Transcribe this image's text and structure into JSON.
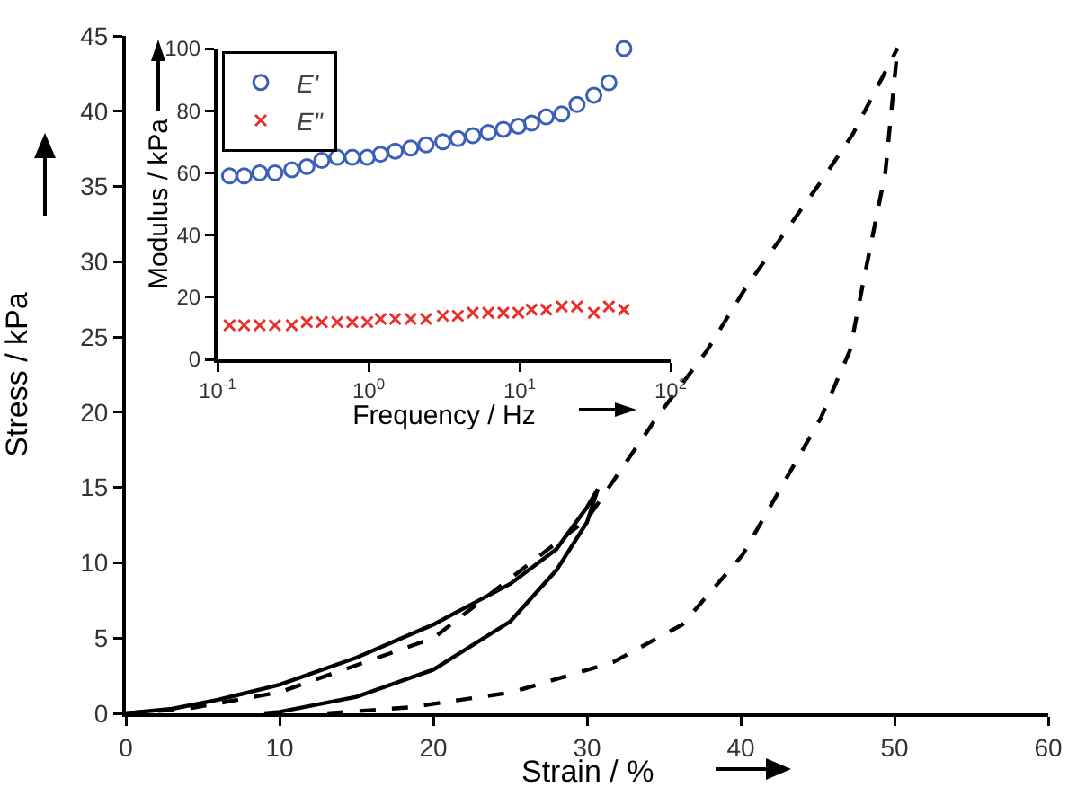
{
  "chart_data": [
    {
      "type": "line",
      "xlabel": "Strain / %",
      "ylabel": "Stress / kPa",
      "xlim": [
        0,
        60
      ],
      "xticks": [
        0,
        10,
        20,
        30,
        40,
        50,
        60
      ],
      "ylim": [
        0,
        45
      ],
      "yticks": [
        0,
        5,
        10,
        15,
        20,
        25,
        30,
        35,
        40,
        45
      ],
      "grid": false,
      "legend": false,
      "marker": "none",
      "series": [
        {
          "color": "#000000",
          "line_style": "solid",
          "x": [
            0,
            3,
            6,
            10,
            15,
            20,
            25,
            28,
            30,
            30.7
          ],
          "values": [
            0,
            0.3,
            0.9,
            1.9,
            3.7,
            5.9,
            8.6,
            10.9,
            13.7,
            14.9
          ]
        },
        {
          "color": "#000000",
          "line_style": "solid",
          "x": [
            9,
            10,
            15,
            20,
            25,
            28,
            30,
            30.7
          ],
          "values": [
            0,
            0.1,
            1.1,
            2.9,
            6.1,
            9.5,
            12.7,
            14.9
          ]
        },
        {
          "color": "#000000",
          "line_style": "dashed",
          "x": [
            0,
            4,
            10,
            20,
            30,
            34.5,
            37.8,
            40.4,
            45.2,
            47.3,
            50.2
          ],
          "values": [
            0,
            0.3,
            1.4,
            5,
            12.9,
            19.6,
            24.1,
            28.4,
            35.3,
            38.5,
            44.2
          ]
        },
        {
          "color": "#000000",
          "line_style": "dashed",
          "x": [
            13.1,
            18.5,
            25.1,
            31.7,
            36.2,
            40.1,
            45.2,
            47.1,
            48,
            49.4,
            50.2
          ],
          "values": [
            0,
            0.4,
            1.4,
            3.4,
            5.9,
            10.5,
            19.6,
            24.1,
            28.8,
            35.9,
            44.2
          ]
        }
      ]
    },
    {
      "type": "scatter",
      "xlabel": "Frequency / Hz",
      "ylabel": "Modulus / kPa",
      "log": "x",
      "xlim": [
        0.1,
        100
      ],
      "xticks": [
        {
          "value": 0.1,
          "label": "10$^{-1}$"
        },
        {
          "value": 1,
          "label": "10$^{0}$"
        },
        {
          "value": 10,
          "label": "10$^{1}$"
        },
        {
          "value": 100,
          "label": "10$^{2}$"
        }
      ],
      "ylim": [
        0,
        100
      ],
      "yticks": [
        0,
        20,
        40,
        60,
        80,
        100
      ],
      "grid": false,
      "legend": "top left",
      "x": [
        0.12,
        0.15,
        0.19,
        0.24,
        0.31,
        0.39,
        0.49,
        0.62,
        0.78,
        0.98,
        1.2,
        1.5,
        1.9,
        2.4,
        3.1,
        3.9,
        4.9,
        6.2,
        7.8,
        9.8,
        12,
        15,
        19,
        24,
        31,
        39,
        49
      ],
      "series": [
        {
          "name": "E'",
          "color": "#3a5fb8",
          "marker": "circle",
          "values": [
            59,
            59,
            60,
            60,
            61,
            62,
            64,
            65,
            65,
            65,
            66,
            67,
            68,
            69,
            70,
            71,
            72,
            73,
            74,
            75,
            76,
            78,
            79,
            82,
            85,
            89,
            100
          ]
        },
        {
          "name": "E\"",
          "color": "#e8312b",
          "marker": "cross",
          "values": [
            11,
            11,
            11,
            11,
            11,
            12,
            12,
            12,
            12,
            12,
            13,
            13,
            13,
            13,
            14,
            14,
            15,
            15,
            15,
            15,
            16,
            16,
            17,
            17,
            15,
            17,
            16
          ]
        }
      ]
    }
  ]
}
